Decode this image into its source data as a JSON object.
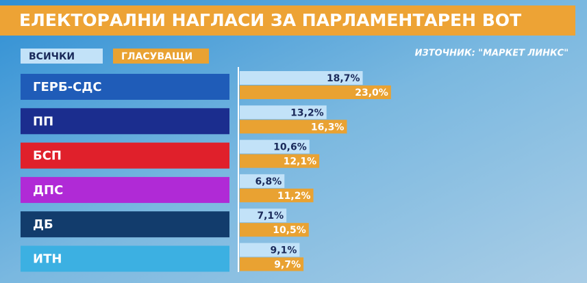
{
  "chart_data": {
    "type": "bar",
    "orientation": "horizontal",
    "title": "ЕЛЕКТОРАЛНИ НАГЛАСИ ЗА ПАРЛАМЕНТАРЕН ВОТ",
    "source": "ИЗТОЧНИК: \"МАРКЕТ ЛИНКС\"",
    "categories": [
      "ГЕРБ-СДС",
      "ПП",
      "БСП",
      "ДПС",
      "ДБ",
      "ИТН"
    ],
    "category_colors": [
      "#1f5cb8",
      "#1b2d8e",
      "#e0202b",
      "#b02ad6",
      "#123c6c",
      "#3cb0e2"
    ],
    "series": [
      {
        "name": "ВСИЧКИ",
        "color": "#c2e2f8",
        "values": [
          18.7,
          13.2,
          10.6,
          6.8,
          7.1,
          9.1
        ],
        "value_labels": [
          "18,7%",
          "13,2%",
          "10,6%",
          "6,8%",
          "7,1%",
          "9,1%"
        ]
      },
      {
        "name": "ГЛАСУВАЩИ",
        "color": "#e9a232",
        "values": [
          23.0,
          16.3,
          12.1,
          11.2,
          10.5,
          9.7
        ],
        "value_labels": [
          "23,0%",
          "16,3%",
          "12,1%",
          "11,2%",
          "10,5%",
          "9,7%"
        ]
      }
    ]
  }
}
